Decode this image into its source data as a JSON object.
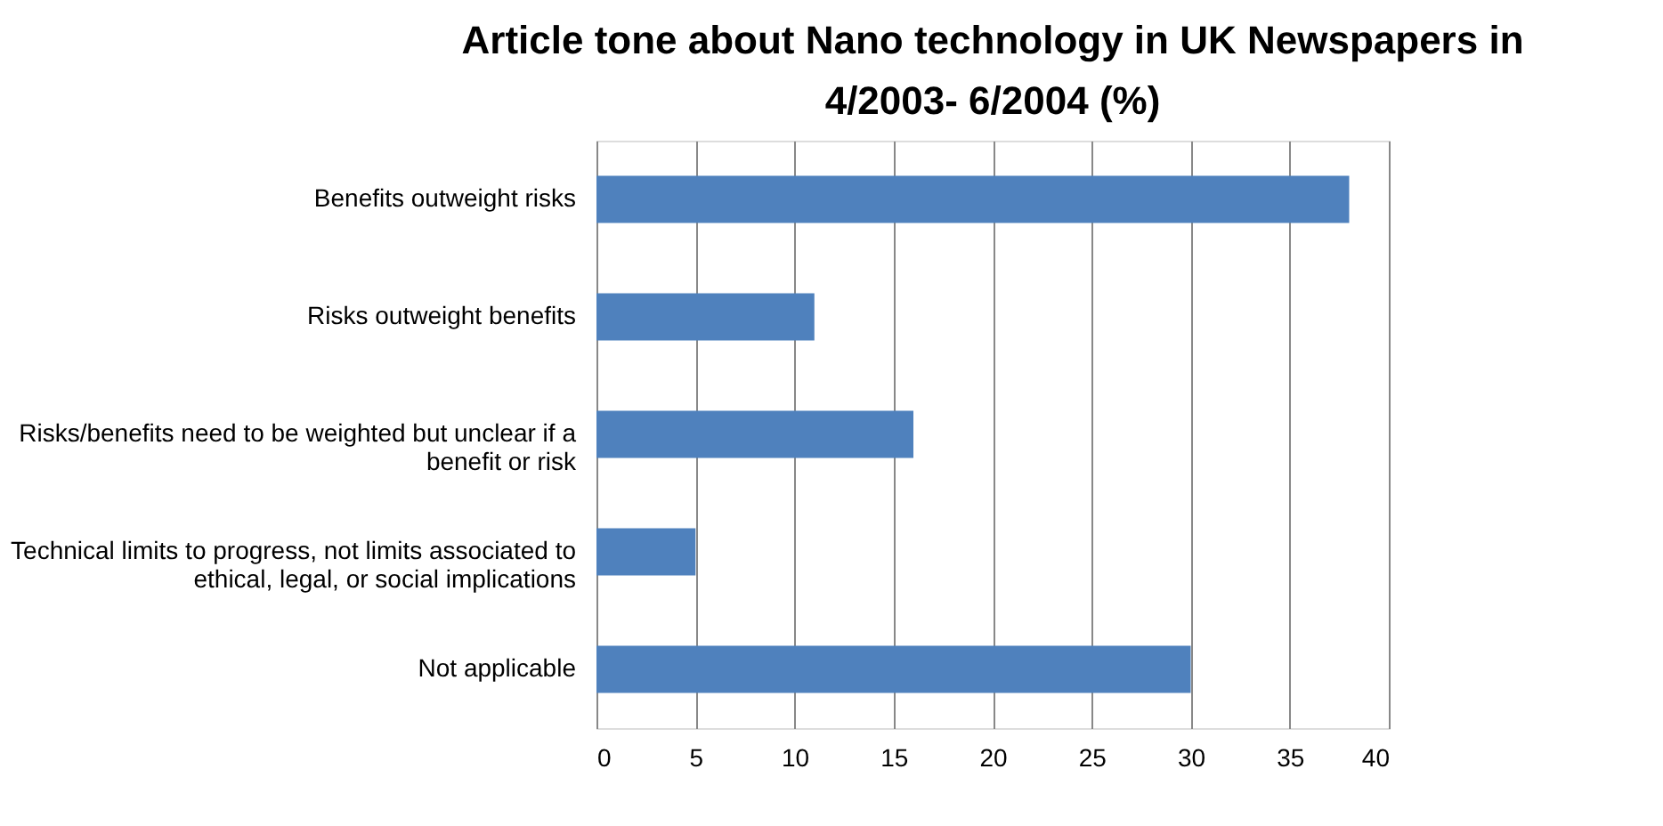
{
  "chart_data": {
    "type": "bar",
    "orientation": "horizontal",
    "title": "Article tone about Nano technology in UK Newspapers in 4/2003- 6/2004 (%)",
    "categories": [
      "Benefits outweight risks",
      "Risks outweight benefits",
      "Risks/benefits need to be weighted but unclear if a benefit or risk",
      "Technical limits to progress, not limits associated to ethical, legal, or social implications",
      "Not applicable"
    ],
    "values": [
      38,
      11,
      16,
      5,
      30
    ],
    "color": "#4f81bd",
    "xlim": [
      0,
      40
    ],
    "xticks": [
      0,
      5,
      10,
      15,
      20,
      25,
      30,
      35,
      40
    ],
    "grid": "x"
  }
}
